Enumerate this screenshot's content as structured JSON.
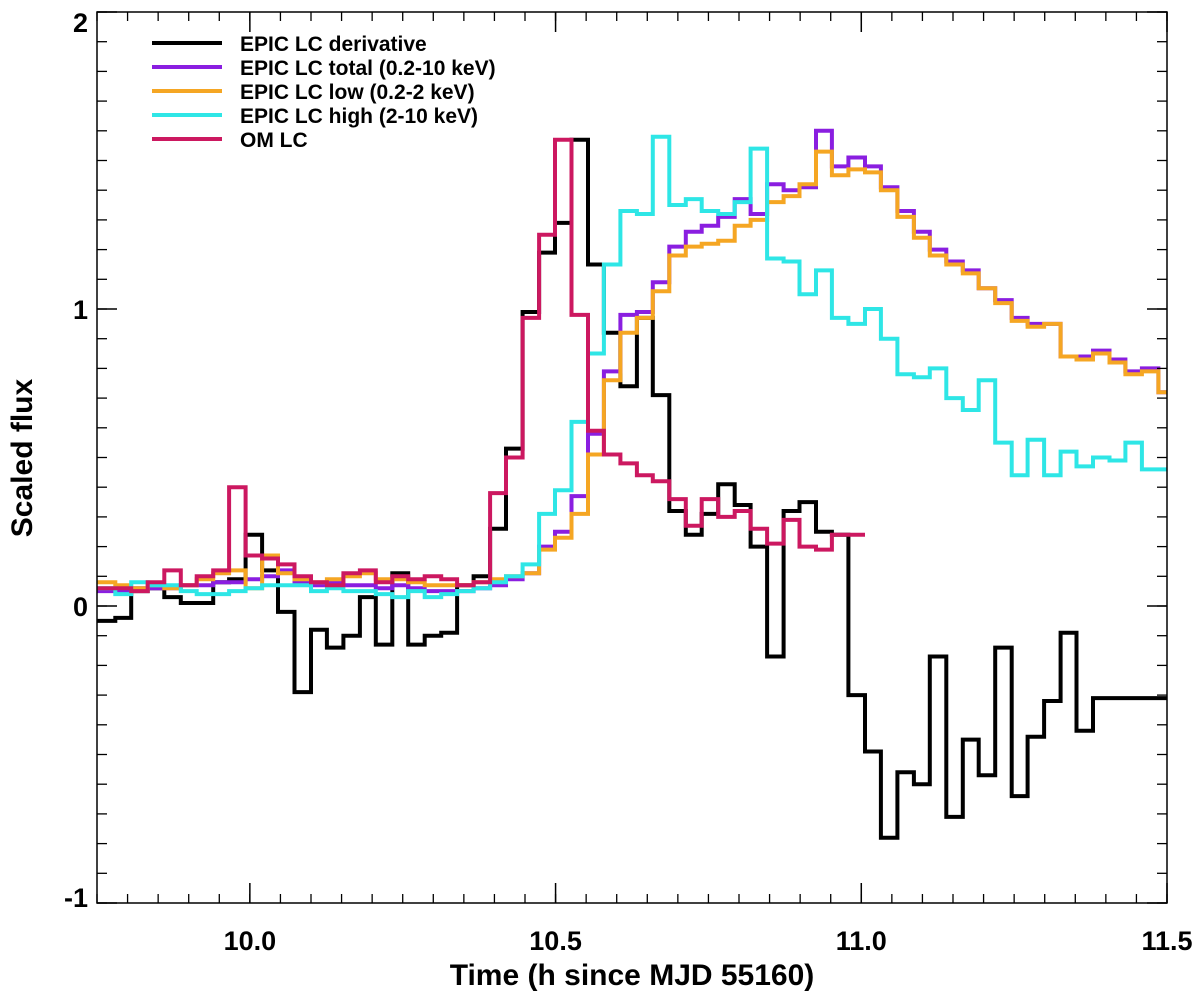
{
  "chart_data": {
    "type": "line",
    "step": true,
    "xlabel": "Time (h since MJD 55160)",
    "ylabel": "Scaled flux",
    "xlim": [
      9.75,
      11.5
    ],
    "ylim": [
      -1,
      2
    ],
    "x_ticks": [
      {
        "value": 10.0,
        "label": "10.0"
      },
      {
        "value": 10.5,
        "label": "10.5"
      },
      {
        "value": 11.0,
        "label": "11.0"
      },
      {
        "value": 11.5,
        "label": "11.5"
      }
    ],
    "y_ticks": [
      {
        "value": -1,
        "label": "-1"
      },
      {
        "value": 0,
        "label": "0"
      },
      {
        "value": 1,
        "label": "1"
      },
      {
        "value": 2,
        "label": "2"
      }
    ],
    "legend_position": "top-left",
    "series": [
      {
        "name": "EPIC LC derivative",
        "color": "#000000",
        "width": 4,
        "x": [
          9.75,
          9.78,
          9.806,
          9.833,
          9.86,
          9.887,
          9.913,
          9.94,
          9.966,
          9.993,
          10.02,
          10.046,
          10.073,
          10.1,
          10.126,
          10.153,
          10.18,
          10.206,
          10.233,
          10.259,
          10.286,
          10.313,
          10.339,
          10.366,
          10.393,
          10.419,
          10.446,
          10.473,
          10.499,
          10.526,
          10.553,
          10.579,
          10.606,
          10.633,
          10.659,
          10.686,
          10.713,
          10.739,
          10.766,
          10.793,
          10.819,
          10.846,
          10.873,
          10.899,
          10.926,
          10.952,
          10.979,
          11.006,
          11.032,
          11.059,
          11.086,
          11.112,
          11.139,
          11.166,
          11.192,
          11.219,
          11.246,
          11.272,
          11.299,
          11.326,
          11.352,
          11.379,
          11.406,
          11.432,
          11.459,
          11.486
        ],
        "y": [
          -0.05,
          -0.04,
          0.05,
          0.06,
          0.03,
          0.01,
          0.01,
          0.08,
          0.09,
          0.24,
          0.12,
          -0.02,
          -0.29,
          -0.08,
          -0.14,
          -0.1,
          0.03,
          -0.13,
          0.11,
          -0.13,
          -0.1,
          -0.09,
          0.07,
          0.1,
          0.26,
          0.53,
          0.99,
          1.19,
          1.29,
          1.57,
          1.15,
          0.92,
          0.74,
          0.97,
          0.71,
          0.32,
          0.24,
          0.31,
          0.41,
          0.34,
          0.2,
          -0.17,
          0.32,
          0.35,
          0.25,
          0.24,
          -0.3,
          -0.49,
          -0.78,
          -0.56,
          -0.6,
          -0.17,
          -0.71,
          -0.45,
          -0.57,
          -0.14,
          -0.64,
          -0.44,
          -0.32,
          -0.09,
          -0.42,
          -0.31,
          -0.31,
          -0.31,
          -0.31,
          -0.31
        ]
      },
      {
        "name": "EPIC LC total (0.2-10 keV)",
        "color": "#8a1ee0",
        "width": 4,
        "x": [
          9.75,
          9.78,
          9.806,
          9.833,
          9.86,
          9.887,
          9.913,
          9.94,
          9.966,
          9.993,
          10.02,
          10.046,
          10.073,
          10.1,
          10.126,
          10.153,
          10.18,
          10.206,
          10.233,
          10.259,
          10.286,
          10.313,
          10.339,
          10.366,
          10.393,
          10.419,
          10.446,
          10.473,
          10.499,
          10.526,
          10.553,
          10.579,
          10.606,
          10.633,
          10.659,
          10.686,
          10.713,
          10.739,
          10.766,
          10.793,
          10.819,
          10.846,
          10.873,
          10.899,
          10.926,
          10.952,
          10.979,
          11.006,
          11.032,
          11.059,
          11.086,
          11.112,
          11.139,
          11.166,
          11.192,
          11.219,
          11.246,
          11.272,
          11.299,
          11.326,
          11.352,
          11.379,
          11.406,
          11.432,
          11.459,
          11.486
        ],
        "y": [
          0.05,
          0.05,
          0.06,
          0.06,
          0.06,
          0.07,
          0.07,
          0.08,
          0.08,
          0.09,
          0.1,
          0.12,
          0.08,
          0.07,
          0.08,
          0.07,
          0.07,
          0.06,
          0.07,
          0.06,
          0.05,
          0.05,
          0.05,
          0.06,
          0.07,
          0.09,
          0.11,
          0.2,
          0.25,
          0.37,
          0.58,
          0.79,
          0.98,
          0.99,
          1.09,
          1.21,
          1.26,
          1.28,
          1.31,
          1.37,
          1.32,
          1.42,
          1.4,
          1.41,
          1.6,
          1.48,
          1.51,
          1.48,
          1.41,
          1.33,
          1.26,
          1.2,
          1.16,
          1.13,
          1.07,
          1.03,
          0.97,
          0.95,
          0.95,
          0.84,
          0.84,
          0.86,
          0.83,
          0.79,
          0.8,
          0.72
        ]
      },
      {
        "name": "EPIC LC low (0.2-2 keV)",
        "color": "#f5a623",
        "width": 4,
        "x": [
          9.75,
          9.78,
          9.806,
          9.833,
          9.86,
          9.887,
          9.913,
          9.94,
          9.966,
          9.993,
          10.02,
          10.046,
          10.073,
          10.1,
          10.126,
          10.153,
          10.18,
          10.206,
          10.233,
          10.259,
          10.286,
          10.313,
          10.339,
          10.366,
          10.393,
          10.419,
          10.446,
          10.473,
          10.499,
          10.526,
          10.553,
          10.579,
          10.606,
          10.633,
          10.659,
          10.686,
          10.713,
          10.739,
          10.766,
          10.793,
          10.819,
          10.846,
          10.873,
          10.899,
          10.926,
          10.952,
          10.979,
          11.006,
          11.032,
          11.059,
          11.086,
          11.112,
          11.139,
          11.166,
          11.192,
          11.219,
          11.246,
          11.272,
          11.299,
          11.326,
          11.352,
          11.379,
          11.406,
          11.432,
          11.459,
          11.486
        ],
        "y": [
          0.08,
          0.07,
          0.06,
          0.07,
          0.06,
          0.07,
          0.09,
          0.11,
          0.12,
          0.06,
          0.17,
          0.11,
          0.09,
          0.08,
          0.09,
          0.1,
          0.11,
          0.09,
          0.09,
          0.08,
          0.07,
          0.07,
          0.07,
          0.08,
          0.09,
          0.1,
          0.11,
          0.19,
          0.23,
          0.31,
          0.51,
          0.76,
          0.92,
          0.97,
          1.06,
          1.18,
          1.21,
          1.22,
          1.23,
          1.28,
          1.3,
          1.36,
          1.38,
          1.42,
          1.53,
          1.45,
          1.47,
          1.46,
          1.4,
          1.31,
          1.24,
          1.18,
          1.15,
          1.12,
          1.07,
          1.02,
          0.96,
          0.94,
          0.95,
          0.84,
          0.83,
          0.85,
          0.82,
          0.78,
          0.79,
          0.72
        ]
      },
      {
        "name": "EPIC LC high (2-10 keV)",
        "color": "#2ee6e6",
        "width": 4,
        "x": [
          9.75,
          9.78,
          9.806,
          9.833,
          9.86,
          9.887,
          9.913,
          9.94,
          9.966,
          9.993,
          10.02,
          10.046,
          10.073,
          10.1,
          10.126,
          10.153,
          10.18,
          10.206,
          10.233,
          10.259,
          10.286,
          10.313,
          10.339,
          10.366,
          10.393,
          10.419,
          10.446,
          10.473,
          10.499,
          10.526,
          10.553,
          10.579,
          10.606,
          10.633,
          10.659,
          10.686,
          10.713,
          10.739,
          10.766,
          10.793,
          10.819,
          10.846,
          10.873,
          10.899,
          10.926,
          10.952,
          10.979,
          11.006,
          11.032,
          11.059,
          11.086,
          11.112,
          11.139,
          11.166,
          11.192,
          11.219,
          11.246,
          11.272,
          11.299,
          11.326,
          11.352,
          11.379,
          11.406,
          11.432,
          11.459,
          11.486
        ],
        "y": [
          0.06,
          0.04,
          0.08,
          0.07,
          0.07,
          0.05,
          0.04,
          0.04,
          0.05,
          0.06,
          0.07,
          0.07,
          0.07,
          0.05,
          0.06,
          0.05,
          0.05,
          0.04,
          0.03,
          0.05,
          0.03,
          0.04,
          0.05,
          0.06,
          0.08,
          0.1,
          0.14,
          0.31,
          0.39,
          0.62,
          0.85,
          1.15,
          1.33,
          1.32,
          1.58,
          1.35,
          1.37,
          1.33,
          1.32,
          1.36,
          1.54,
          1.17,
          1.16,
          1.05,
          1.13,
          0.97,
          0.95,
          1.0,
          0.9,
          0.78,
          0.77,
          0.8,
          0.7,
          0.66,
          0.76,
          0.55,
          0.44,
          0.56,
          0.44,
          0.52,
          0.47,
          0.5,
          0.49,
          0.55,
          0.46,
          0.46
        ]
      },
      {
        "name": "OM LC",
        "color": "#cc1860",
        "width": 4,
        "x": [
          9.75,
          9.78,
          9.806,
          9.833,
          9.86,
          9.887,
          9.913,
          9.94,
          9.966,
          9.993,
          10.02,
          10.046,
          10.073,
          10.1,
          10.126,
          10.153,
          10.18,
          10.206,
          10.233,
          10.259,
          10.286,
          10.313,
          10.339,
          10.366,
          10.393,
          10.419,
          10.446,
          10.473,
          10.499,
          10.526,
          10.553,
          10.579,
          10.606,
          10.633,
          10.659,
          10.686,
          10.713,
          10.739,
          10.766,
          10.793,
          10.819,
          10.846,
          10.873,
          10.899,
          10.926,
          10.952,
          10.979
        ],
        "y": [
          0.06,
          0.06,
          0.05,
          0.08,
          0.12,
          0.07,
          0.1,
          0.12,
          0.4,
          0.17,
          0.16,
          0.14,
          0.1,
          0.08,
          0.07,
          0.11,
          0.12,
          0.08,
          0.1,
          0.09,
          0.1,
          0.09,
          0.07,
          0.08,
          0.38,
          0.5,
          0.97,
          1.25,
          1.57,
          0.98,
          0.59,
          0.51,
          0.48,
          0.44,
          0.42,
          0.36,
          0.27,
          0.36,
          0.3,
          0.32,
          0.26,
          0.21,
          0.29,
          0.2,
          0.19,
          0.24,
          0.24
        ]
      }
    ]
  }
}
